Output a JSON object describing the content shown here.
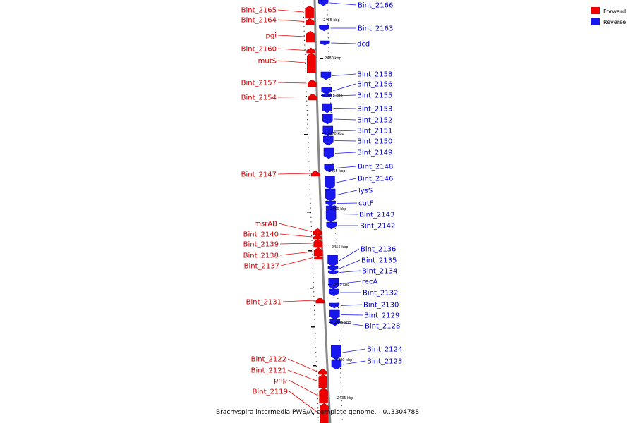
{
  "colors": {
    "forward": "#ee0000",
    "reverse": "#1818ee",
    "backbone": "#888888",
    "text_forward": "#cc0000",
    "text_reverse": "#0000cc"
  },
  "legend": {
    "forward": "Forward",
    "reverse": "Reverse"
  },
  "caption": "Brachyspira intermedia PWS/A, complete genome. - 0..3304788",
  "scale_labels": [
    "2485 kbp",
    "2480 kbp",
    "2475 kbp",
    "2470 kbp",
    "2465 kbp",
    "2460 kbp",
    "2455 kbp",
    "2450 kbp",
    "2445 kbp",
    "2440 kbp",
    "2435 kbp"
  ],
  "forward_genes": [
    "Bint_2165",
    "Bint_2164",
    "pgi",
    "Bint_2160",
    "mutS",
    "Bint_2157",
    "Bint_2154",
    "Bint_2147",
    "msrAB",
    "Bint_2140",
    "Bint_2139",
    "Bint_2138",
    "Bint_2137",
    "Bint_2131",
    "Bint_2122",
    "Bint_2121",
    "pnp",
    "Bint_2119"
  ],
  "reverse_genes": [
    "Bint_2166",
    "Bint_2163",
    "dcd",
    "Bint_2158",
    "Bint_2156",
    "Bint_2155",
    "Bint_2153",
    "Bint_2152",
    "Bint_2151",
    "Bint_2150",
    "Bint_2149",
    "Bint_2148",
    "Bint_2146",
    "lysS",
    "cutF",
    "Bint_2143",
    "Bint_2142",
    "Bint_2136",
    "Bint_2135",
    "Bint_2134",
    "recA",
    "Bint_2132",
    "Bint_2130",
    "Bint_2129",
    "Bint_2128",
    "Bint_2124",
    "Bint_2123"
  ]
}
